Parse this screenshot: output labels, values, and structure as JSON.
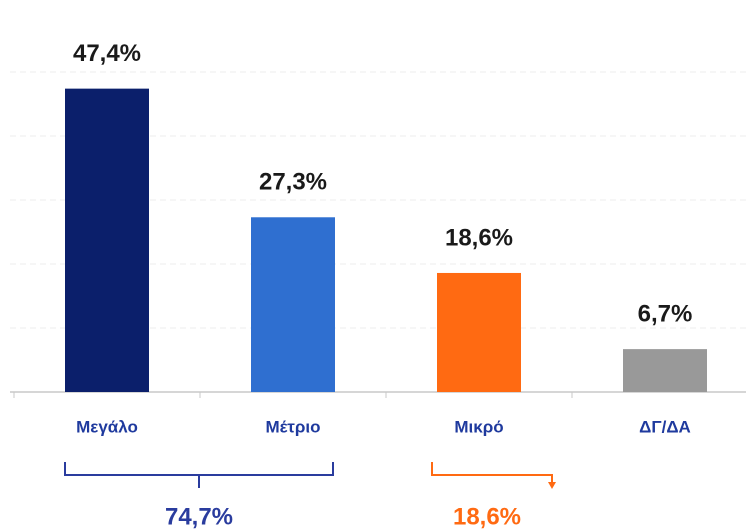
{
  "chart_data": {
    "type": "bar",
    "categories": [
      "Μεγάλο",
      "Μέτριο",
      "Μικρό",
      "ΔΓ/ΔΑ"
    ],
    "values": [
      47.4,
      27.3,
      18.6,
      6.7
    ],
    "value_labels": [
      "47,4%",
      "27,3%",
      "18,6%",
      "6,7%"
    ],
    "colors": [
      "#0b1f6b",
      "#2f6fd0",
      "#ff6a12",
      "#999999"
    ],
    "ylim": [
      0,
      50
    ],
    "yticks": [
      0,
      10,
      20,
      30,
      40,
      50
    ],
    "grid": true,
    "annotations": [
      {
        "text": "74,7%",
        "color": "#2a3c9e"
      },
      {
        "text": "18,6%",
        "color": "#ff6a12"
      }
    ]
  }
}
